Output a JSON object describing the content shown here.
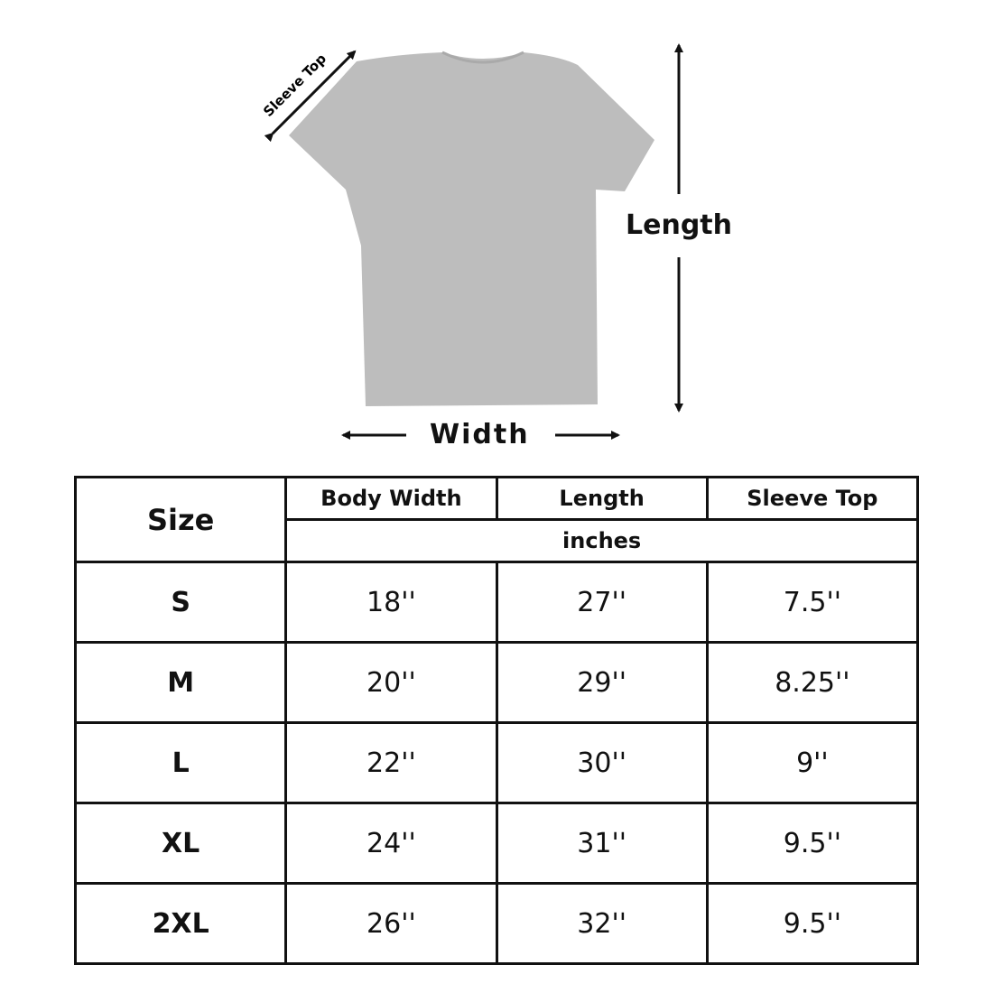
{
  "diagram": {
    "sleeve_label": "Sleeve Top",
    "length_label": "Length",
    "width_label": "Width",
    "shirt_color": "#bdbdbd"
  },
  "table": {
    "size_header": "Size",
    "headers": [
      "Body Width",
      "Length",
      "Sleeve Top"
    ],
    "unit": "inches",
    "rows": [
      {
        "size": "S",
        "values": [
          "18''",
          "27''",
          "7.5''"
        ]
      },
      {
        "size": "M",
        "values": [
          "20''",
          "29''",
          "8.25''"
        ]
      },
      {
        "size": "L",
        "values": [
          "22''",
          "30''",
          "9''"
        ]
      },
      {
        "size": "XL",
        "values": [
          "24''",
          "31''",
          "9.5''"
        ]
      },
      {
        "size": "2XL",
        "values": [
          "26''",
          "32''",
          "9.5''"
        ]
      }
    ]
  }
}
